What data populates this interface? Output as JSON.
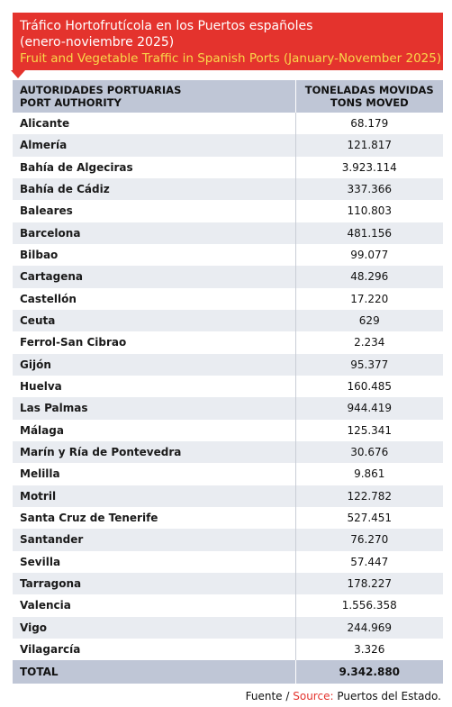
{
  "header": {
    "title_es_line1": "Tráfico Hortofrutícola en los Puertos españoles",
    "title_es_line2": "(enero-noviembre 2025)",
    "title_en": "Fruit and Vegetable Traffic in Spanish Ports (January-November 2025)"
  },
  "table": {
    "col1_es": "AUTORIDADES PORTUARIAS",
    "col1_en": "PORT AUTHORITY",
    "col2_es": "TONELADAS MOVIDAS",
    "col2_en": "TONS MOVED",
    "rows": [
      {
        "name": "Alicante",
        "value": "68.179"
      },
      {
        "name": "Almería",
        "value": "121.817"
      },
      {
        "name": "Bahía de Algeciras",
        "value": "3.923.114"
      },
      {
        "name": "Bahía de Cádiz",
        "value": "337.366"
      },
      {
        "name": "Baleares",
        "value": "110.803"
      },
      {
        "name": "Barcelona",
        "value": "481.156"
      },
      {
        "name": "Bilbao",
        "value": "99.077"
      },
      {
        "name": "Cartagena",
        "value": "48.296"
      },
      {
        "name": "Castellón",
        "value": "17.220"
      },
      {
        "name": "Ceuta",
        "value": "629"
      },
      {
        "name": "Ferrol-San Cibrao",
        "value": "2.234"
      },
      {
        "name": "Gijón",
        "value": "95.377"
      },
      {
        "name": "Huelva",
        "value": "160.485"
      },
      {
        "name": "Las Palmas",
        "value": "944.419"
      },
      {
        "name": "Málaga",
        "value": "125.341"
      },
      {
        "name": "Marín y Ría de Pontevedra",
        "value": "30.676"
      },
      {
        "name": "Melilla",
        "value": "9.861"
      },
      {
        "name": "Motril",
        "value": "122.782"
      },
      {
        "name": "Santa Cruz de Tenerife",
        "value": "527.451"
      },
      {
        "name": "Santander",
        "value": "76.270"
      },
      {
        "name": "Sevilla",
        "value": "57.447"
      },
      {
        "name": "Tarragona",
        "value": "178.227"
      },
      {
        "name": "Valencia",
        "value": "1.556.358"
      },
      {
        "name": "Vigo",
        "value": "244.969"
      },
      {
        "name": "Vilagarcía",
        "value": "3.326"
      }
    ],
    "total_label": "TOTAL",
    "total_value": "9.342.880"
  },
  "source": {
    "es": "Fuente /",
    "en": "Source:",
    "text": "Puertos del Estado."
  },
  "colors": {
    "banner": "#e4332d",
    "subtitle": "#f9d84a",
    "header_row": "#bfc6d6",
    "stripe": "#e9ecf1"
  }
}
